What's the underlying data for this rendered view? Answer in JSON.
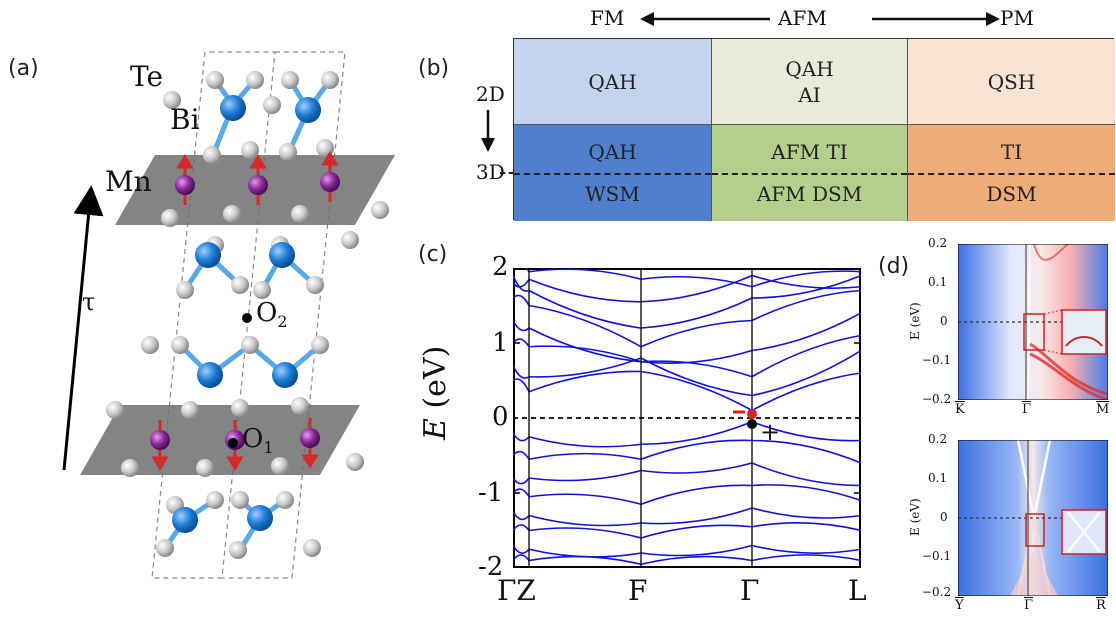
{
  "panels": {
    "a": "(a)",
    "b": "(b)",
    "c": "(c)",
    "d": "(d)"
  },
  "panel_a": {
    "atoms": {
      "te": "Te",
      "bi": "Bi",
      "mn": "Mn"
    },
    "tau": "τ",
    "o2": "O",
    "o2_sub": "2",
    "o1": "O",
    "o1_sub": "1",
    "colors": {
      "bi": "#1f7fd6",
      "te": "#c8c8c8",
      "mn": "#8a2a9a",
      "spin": "#d42a2a",
      "layer": "#6f6f6f"
    }
  },
  "panel_b": {
    "top_fm": "FM",
    "top_afm": "AFM",
    "top_pm": "PM",
    "left_2d": "2D",
    "left_3d": "3D",
    "cells": {
      "fm_2d": "QAH",
      "afm_2d_a": "QAH",
      "afm_2d_b": "AI",
      "pm_2d": "QSH",
      "fm_3d_a": "QAH",
      "fm_3d_b": "WSM",
      "afm_3d_a": "AFM TI",
      "afm_3d_b": "AFM DSM",
      "pm_3d_a": "TI",
      "pm_3d_b": "DSM"
    },
    "colors": {
      "fm_2d": "#c3d5ec",
      "afm_2d": "#e6ecd9",
      "pm_2d": "#f9e4d4",
      "fm_3d": "#4f7fcd",
      "afm_3d": "#b4cf8c",
      "pm_3d": "#f0ac78"
    }
  },
  "panel_c": {
    "ylabel_var": "E",
    "ylabel_unit": " (eV)",
    "yticks": [
      "2",
      "1",
      "0",
      "-1",
      "-2"
    ],
    "xticks": [
      "ΓZ",
      "F",
      "Γ",
      "L"
    ],
    "minus": "−",
    "plus": "+",
    "band_color": "#1010dd"
  },
  "panel_d": {
    "top": {
      "yticks": [
        "0.2",
        "0.1",
        "0",
        "−0.1",
        "−0.2"
      ],
      "xticks": [
        "K",
        "Γ",
        "M"
      ],
      "ylabel": "E (eV)"
    },
    "bottom": {
      "yticks": [
        "0.2",
        "0.1",
        "0",
        "−0.1",
        "−0.2"
      ],
      "xticks": [
        "Y",
        "Γ",
        "R"
      ],
      "ylabel": "E (eV)"
    }
  }
}
